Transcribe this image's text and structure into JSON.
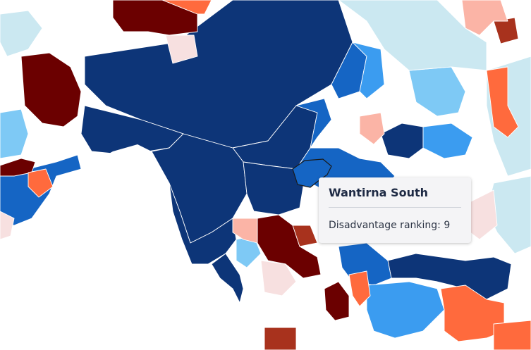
{
  "map": {
    "colors": {
      "land_background": "#ffffff",
      "water": "#ffffff",
      "boundary": "#ffffff",
      "scale": [
        "#6b0000",
        "#a8321d",
        "#ff6a3d",
        "#fbb4a6",
        "#f7e0e0",
        "#cbe8f1",
        "#7ec9f5",
        "#3b9cf0",
        "#1565c4",
        "#0d3578"
      ]
    },
    "highlighted_region": "Wantirna South"
  },
  "tooltip": {
    "title": "Wantirna South",
    "label": "Disadvantage ranking:",
    "value": "9"
  }
}
